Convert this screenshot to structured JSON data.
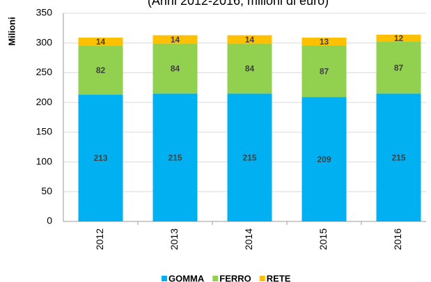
{
  "chart_data": {
    "type": "stacked_bar",
    "subtitle": "(Anni 2012-2016, milioni di euro)",
    "y_label": "Milioni",
    "categories": [
      "2012",
      "2013",
      "2014",
      "2015",
      "2016"
    ],
    "series": [
      {
        "name": "GOMMA",
        "color": "#00b0f0",
        "values": [
          213,
          215,
          215,
          209,
          215
        ]
      },
      {
        "name": "FERRO",
        "color": "#92d050",
        "values": [
          82,
          84,
          84,
          87,
          87
        ]
      },
      {
        "name": "RETE",
        "color": "#ffc000",
        "values": [
          14,
          14,
          14,
          13,
          12
        ]
      }
    ],
    "ylim": [
      0,
      350
    ],
    "yticks": [
      0,
      50,
      100,
      150,
      200,
      250,
      300,
      350
    ],
    "grid": true
  }
}
